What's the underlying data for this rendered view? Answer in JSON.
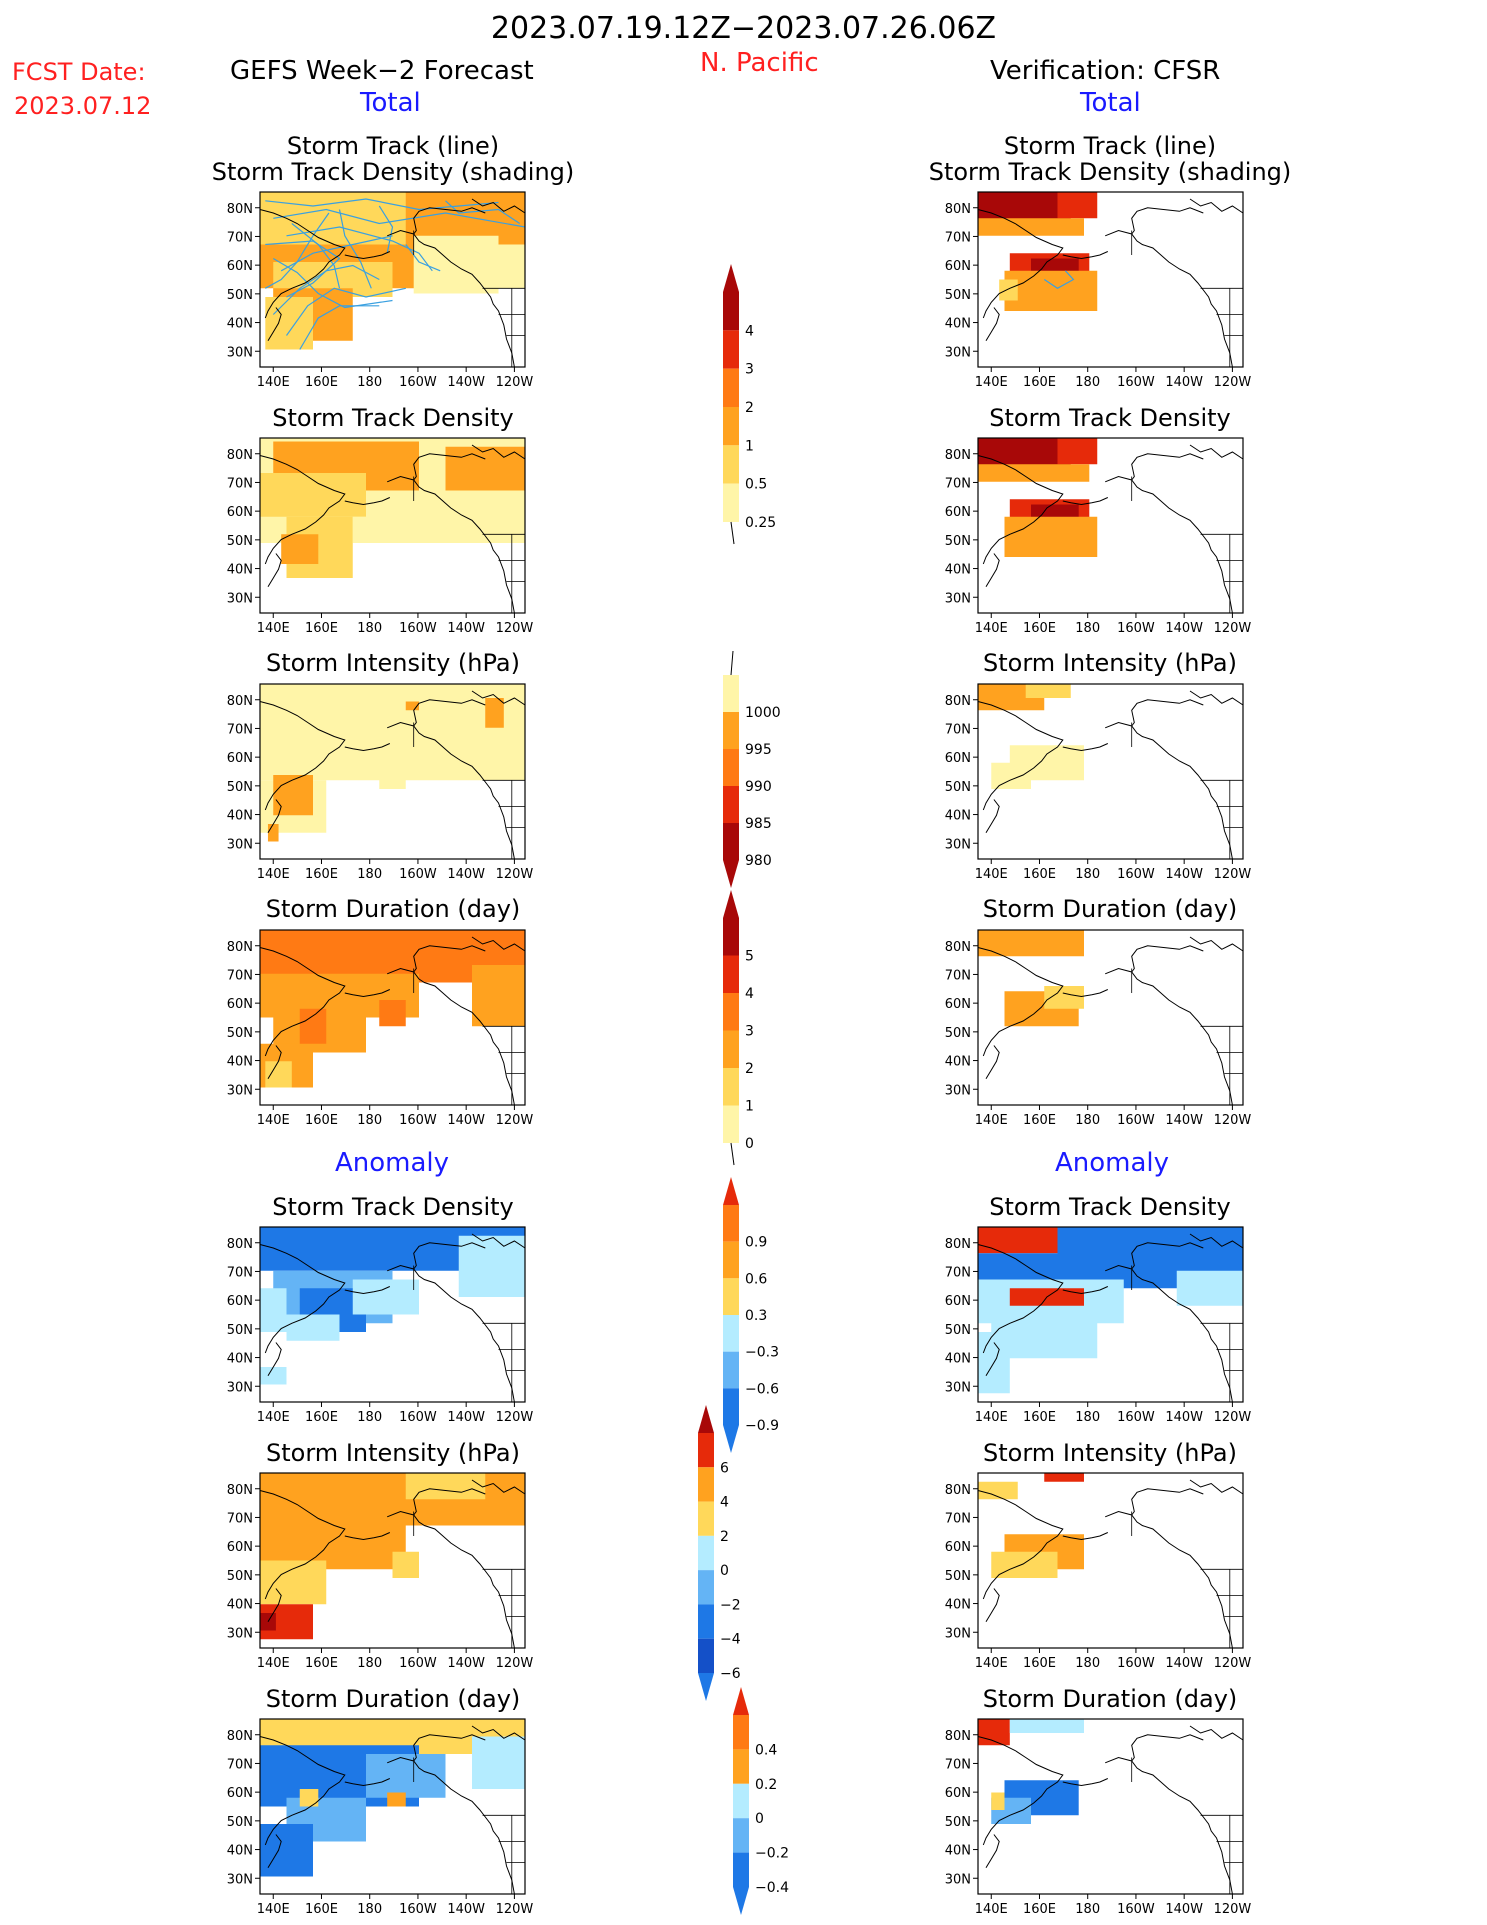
{
  "header": {
    "date_range": "2023.07.19.12Z−2023.07.26.06Z",
    "fcst_label": "FCST Date:",
    "fcst_date": "2023.07.12",
    "left_title": "GEFS Week−2 Forecast",
    "region": "N. Pacific",
    "right_title": "Verification: CFSR",
    "total_label": "Total",
    "anomaly_label": "Anomaly"
  },
  "axes": {
    "x_ticks": [
      "140E",
      "160E",
      "180",
      "160W",
      "140W",
      "120W"
    ],
    "y_ticks": [
      "80N",
      "70N",
      "60N",
      "50N",
      "40N",
      "30N"
    ]
  },
  "panel_titles": {
    "track": [
      "Storm Track (line)",
      "Storm Track Density (shading)"
    ],
    "density": "Storm Track Density",
    "intensity": "Storm Intensity (hPa)",
    "duration": "Storm Duration (day)"
  },
  "colorbars": {
    "density": [
      "4",
      "3",
      "2",
      "1",
      "0.5",
      "0.25"
    ],
    "intensity": [
      "1000",
      "995",
      "990",
      "985",
      "980"
    ],
    "duration": [
      "5",
      "4",
      "3",
      "2",
      "1",
      "0"
    ],
    "density_anom": [
      "0.9",
      "0.6",
      "0.3",
      "−0.3",
      "−0.6",
      "−0.9"
    ],
    "intensity_anom": [
      "6",
      "4",
      "2",
      "0",
      "−2",
      "−4",
      "−6"
    ],
    "duration_anom": [
      "0.4",
      "0.2",
      "0",
      "−0.2",
      "−0.4"
    ]
  },
  "colors": {
    "pale_yellow": "#fff5a8",
    "light_orange": "#ffd85a",
    "orange": "#ffa21f",
    "dark_orange": "#ff7a14",
    "red": "#e62a0a",
    "dark_red": "#a80808",
    "light_blue": "#b4ecff",
    "mid_blue": "#64b4f5",
    "blue": "#1e78e6",
    "dark_blue": "#1450c8",
    "track_line": "#3aa0e0"
  }
}
